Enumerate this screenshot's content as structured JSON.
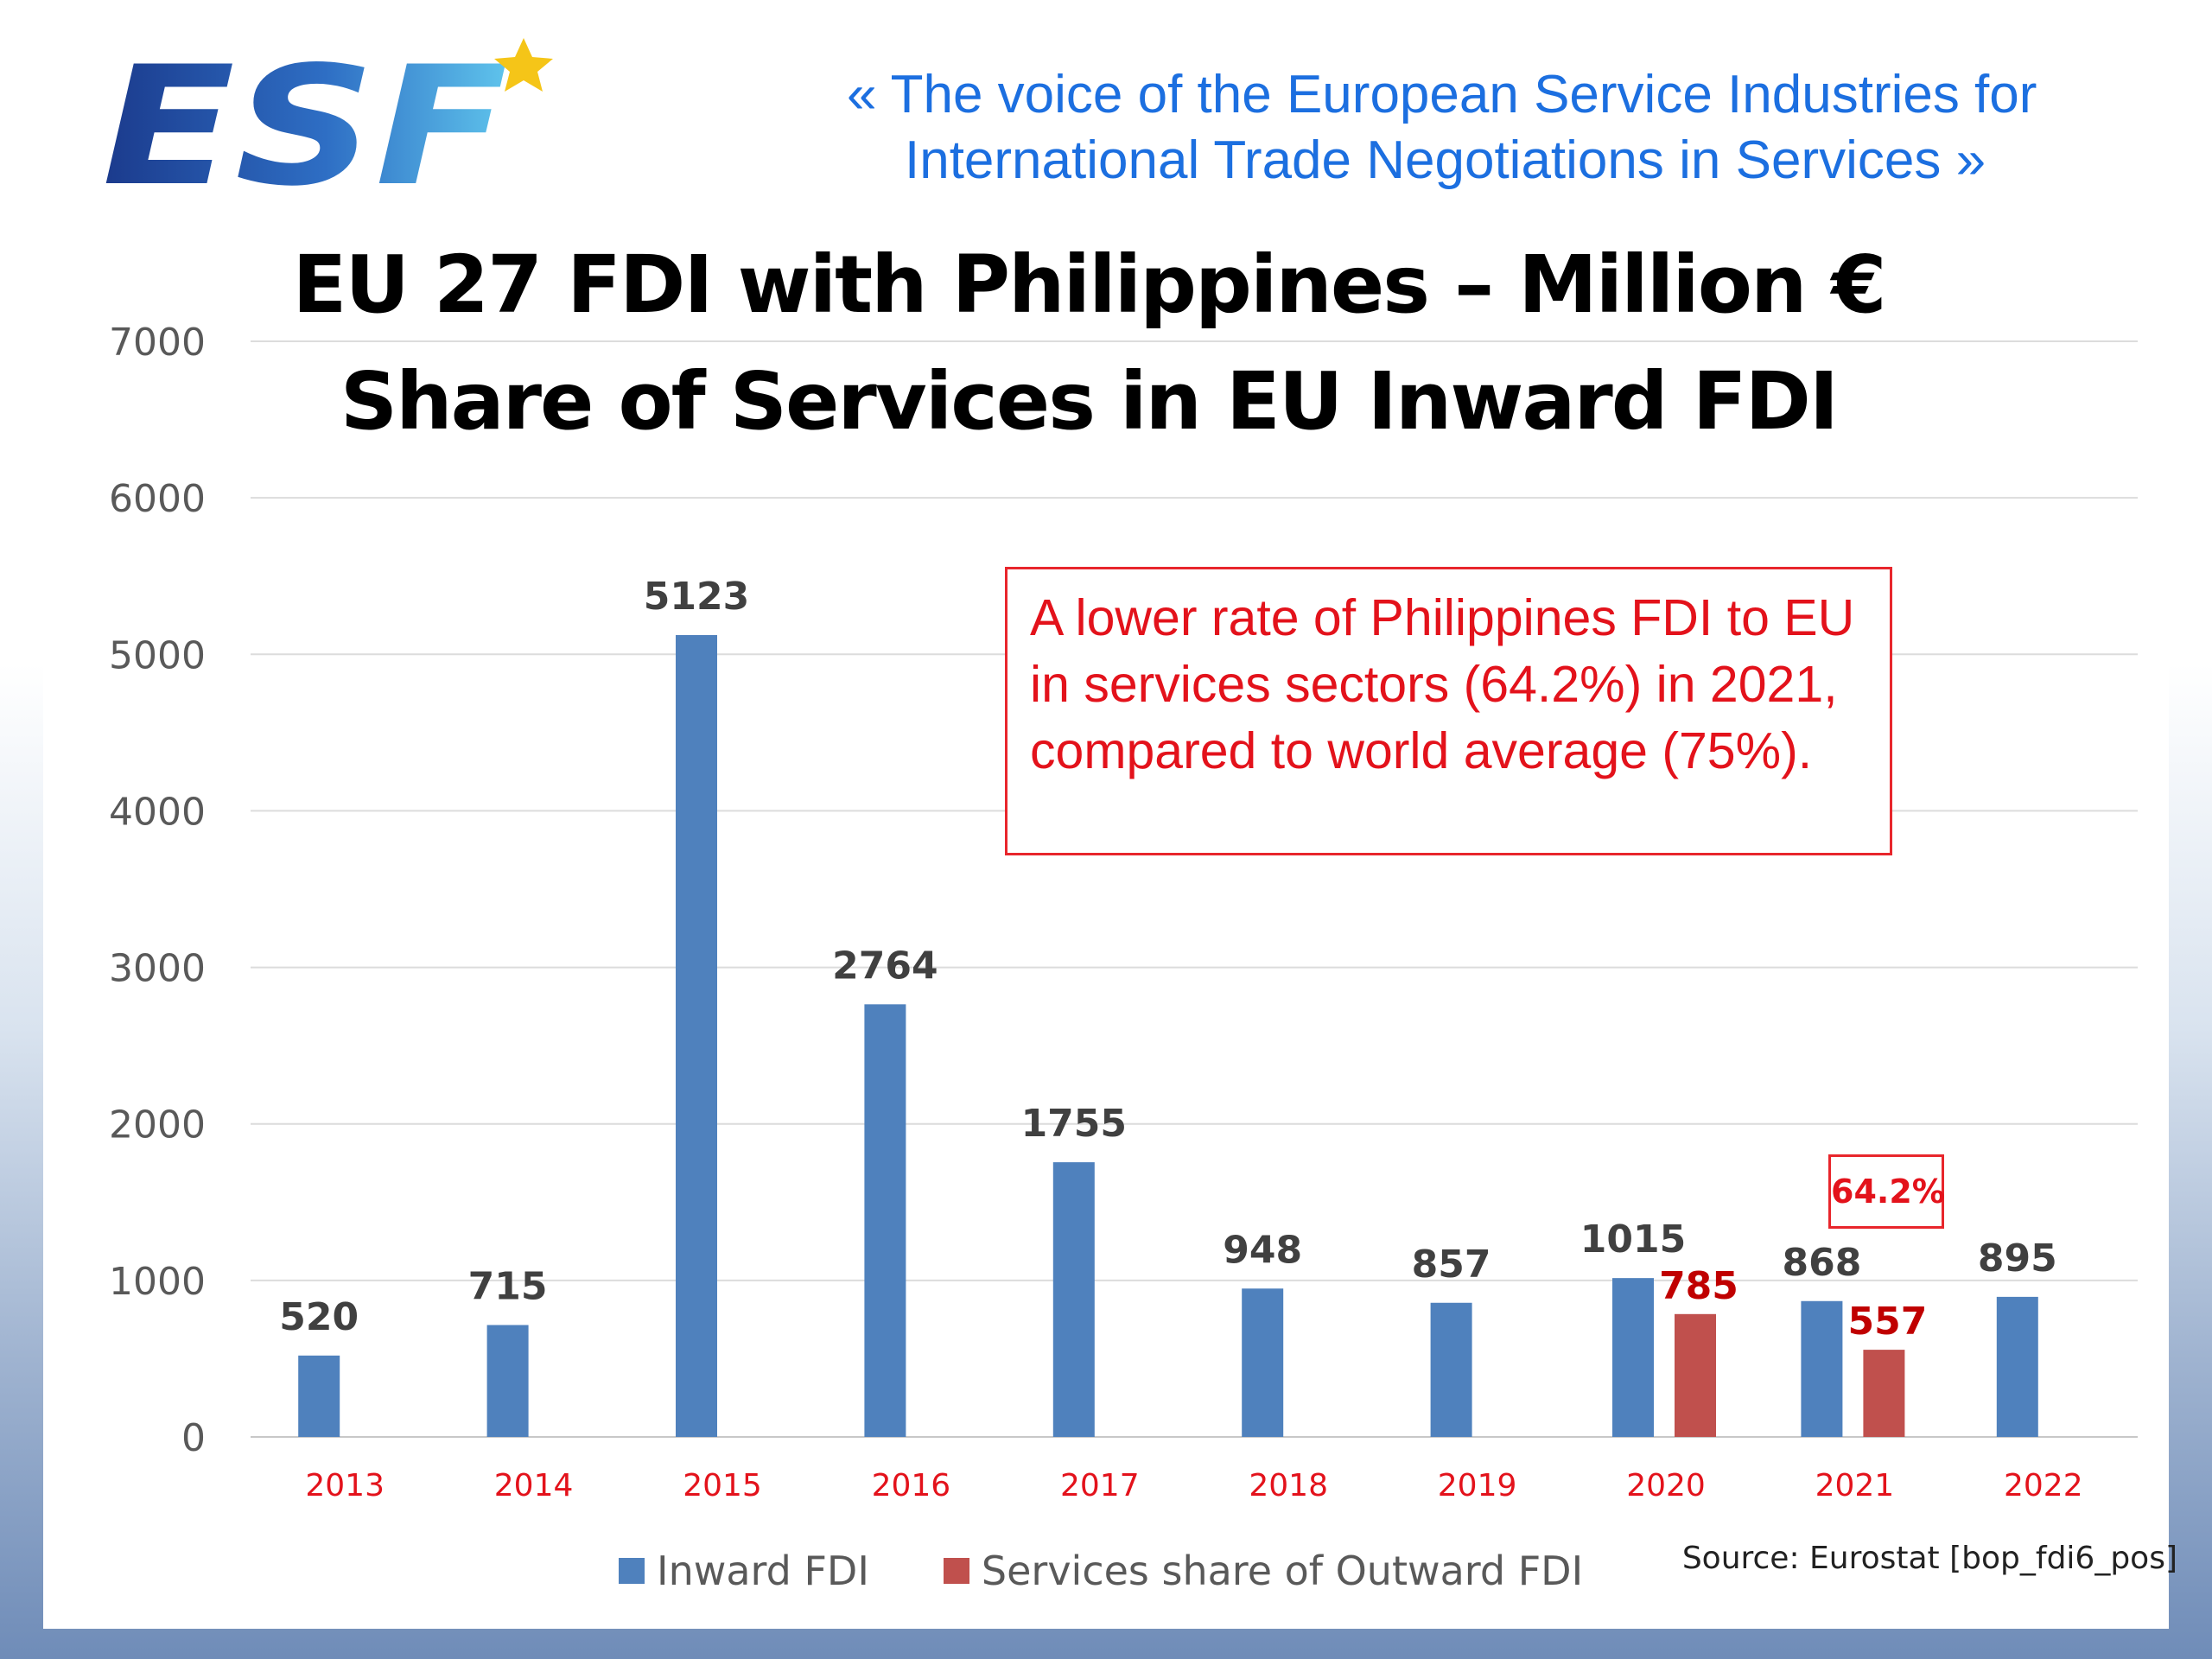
{
  "logo": {
    "text": "ESF",
    "star_color": "#f5c518"
  },
  "tagline": {
    "line1": "«  The voice of the European Service Industries for",
    "line2": "International Trade Negotiations in Services  »"
  },
  "annotation": {
    "text": "A lower rate of Philippines FDI to EU in services sectors (64.2%) in 2021, compared to world average (75%)."
  },
  "percent_callout": "64.2%",
  "source": "Source: Eurostat [bop_fdi6_pos]",
  "colors": {
    "inward": "#4f81bd",
    "services": "#c0504d",
    "accent_red": "#e3121b"
  },
  "chart_data": {
    "type": "bar",
    "title": "EU 27 FDI with Philippines – Million €",
    "subtitle": "Share of Services in EU Inward FDI",
    "categories": [
      "2013",
      "2014",
      "2015",
      "2016",
      "2017",
      "2018",
      "2019",
      "2020",
      "2021",
      "2022"
    ],
    "series": [
      {
        "name": "Inward FDI",
        "values": [
          520,
          715,
          5123,
          2764,
          1755,
          948,
          857,
          1015,
          868,
          895
        ]
      },
      {
        "name": "Services share of Outward FDI",
        "values": [
          null,
          null,
          null,
          null,
          null,
          null,
          null,
          785,
          557,
          null
        ]
      }
    ],
    "ylim": [
      0,
      7000
    ],
    "yticks": [
      0,
      1000,
      2000,
      3000,
      4000,
      5000,
      6000,
      7000
    ],
    "grid": true,
    "legend_position": "bottom"
  }
}
